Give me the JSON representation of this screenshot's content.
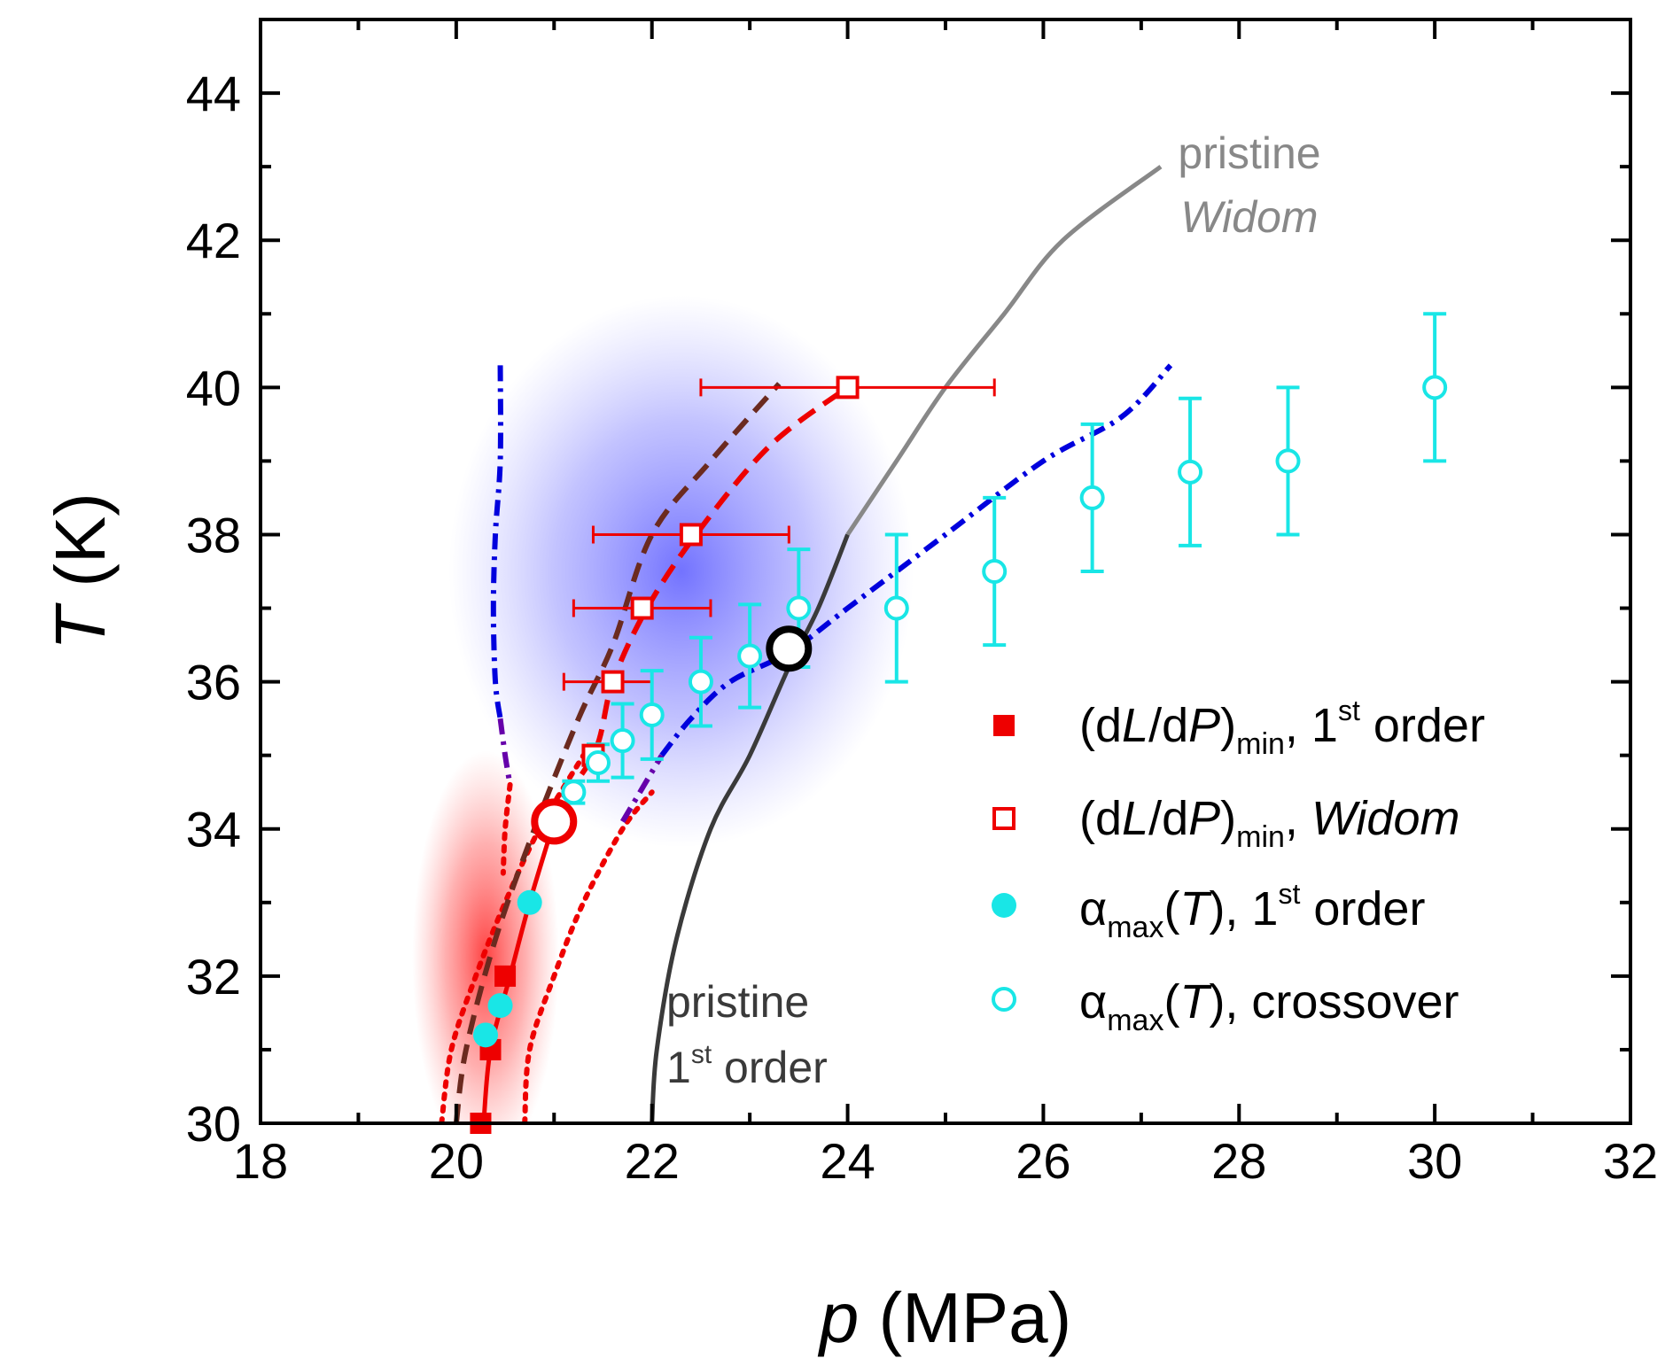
{
  "chart_data": {
    "type": "scatter",
    "title": "",
    "xlabel": {
      "symbol": "p",
      "rest": " (MPa)"
    },
    "ylabel": {
      "symbol": "T",
      "rest": " (K)"
    },
    "xlim": [
      18,
      32
    ],
    "ylim": [
      30,
      45
    ],
    "x_ticks": [
      18,
      20,
      22,
      24,
      26,
      28,
      30,
      32
    ],
    "y_ticks": [
      30,
      32,
      34,
      36,
      38,
      40,
      42,
      44
    ],
    "grid": false,
    "legend_position": "right-center",
    "colors": {
      "red": "#ee0000",
      "cyan": "#19e6e6",
      "blue": "#0000dd",
      "purple": "#6600aa",
      "brown": "#6b2a1f",
      "gray": "#888888",
      "dark_gray": "#3a3a3a"
    },
    "series": [
      {
        "name": "dLdP_first_order",
        "marker": "filled-square",
        "color": "#ee0000",
        "legend": {
          "pre": "(d",
          "i1": "L",
          "mid": "/d",
          "i2": "P",
          "paren": ")",
          "sub": "min",
          "comma": ", 1",
          "sup": "st",
          "post": " order"
        },
        "points": [
          [
            20.25,
            30.0
          ],
          [
            20.35,
            31.0
          ],
          [
            20.5,
            32.0
          ]
        ]
      },
      {
        "name": "dLdP_widom",
        "marker": "open-square",
        "color": "#ee0000",
        "legend": {
          "pre": "(d",
          "i1": "L",
          "mid": "/d",
          "i2": "P",
          "paren": ")",
          "sub": "min",
          "comma": ", ",
          "ital": "Widom"
        },
        "points": [
          {
            "x": 21.4,
            "y": 35.0,
            "xerr": [
              0.1,
              0.1
            ]
          },
          {
            "x": 21.6,
            "y": 36.0,
            "xerr": [
              0.5,
              0.4
            ]
          },
          {
            "x": 21.9,
            "y": 37.0,
            "xerr": [
              0.7,
              0.7
            ]
          },
          {
            "x": 22.4,
            "y": 38.0,
            "xerr": [
              1.0,
              1.0
            ]
          },
          {
            "x": 24.0,
            "y": 40.0,
            "xerr": [
              1.5,
              1.5
            ]
          }
        ]
      },
      {
        "name": "alpha_first_order",
        "marker": "filled-circle",
        "color": "#19e6e6",
        "legend": {
          "pre": "α",
          "sub": "max",
          "open": "(",
          "ital": "T",
          "comma": "), 1",
          "sup": "st",
          "post": " order"
        },
        "points": [
          [
            20.3,
            31.2
          ],
          [
            20.45,
            31.6
          ],
          [
            20.75,
            33.0
          ],
          [
            20.95,
            34.0
          ]
        ]
      },
      {
        "name": "alpha_crossover",
        "marker": "open-circle",
        "color": "#19e6e6",
        "legend": {
          "pre": "α",
          "sub": "max",
          "open": "(",
          "ital": "T",
          "post": "), crossover"
        },
        "points": [
          {
            "x": 21.2,
            "y": 34.5,
            "yerr": 0.15
          },
          {
            "x": 21.45,
            "y": 34.9,
            "yerr": 0.25
          },
          {
            "x": 21.7,
            "y": 35.2,
            "yerr": 0.5
          },
          {
            "x": 22.0,
            "y": 35.55,
            "yerr": 0.6
          },
          {
            "x": 22.5,
            "y": 36.0,
            "yerr": 0.6
          },
          {
            "x": 23.0,
            "y": 36.35,
            "yerr": 0.7
          },
          {
            "x": 23.5,
            "y": 37.0,
            "yerr": 0.8
          },
          {
            "x": 24.5,
            "y": 37.0,
            "yerr": 1.0
          },
          {
            "x": 25.5,
            "y": 37.5,
            "yerr": 1.0
          },
          {
            "x": 26.5,
            "y": 38.5,
            "yerr": 1.0
          },
          {
            "x": 27.5,
            "y": 38.85,
            "yerr": 1.0
          },
          {
            "x": 28.5,
            "y": 39.0,
            "yerr": 1.0
          },
          {
            "x": 30.0,
            "y": 40.0,
            "yerr": 1.0
          }
        ]
      }
    ],
    "lines": [
      {
        "name": "pristine-first-order-line",
        "color": "#3a3a3a",
        "style": "solid",
        "points": [
          [
            22.0,
            30.0
          ],
          [
            22.05,
            31.0
          ],
          [
            22.25,
            32.5
          ],
          [
            22.6,
            34.0
          ],
          [
            23.0,
            35.0
          ],
          [
            23.4,
            36.2
          ],
          [
            23.7,
            37.0
          ],
          [
            24.0,
            38.0
          ]
        ]
      },
      {
        "name": "pristine-widom-line",
        "color": "#888888",
        "style": "solid",
        "points": [
          [
            24.0,
            38.0
          ],
          [
            24.5,
            39.0
          ],
          [
            25.0,
            40.0
          ],
          [
            25.6,
            41.0
          ],
          [
            26.2,
            42.0
          ],
          [
            27.2,
            43.0
          ]
        ]
      },
      {
        "name": "red-solid-line",
        "color": "#ee0000",
        "style": "solid",
        "points": [
          [
            20.28,
            30.0
          ],
          [
            20.35,
            31.0
          ],
          [
            20.55,
            32.0
          ],
          [
            20.75,
            33.0
          ],
          [
            21.0,
            34.1
          ]
        ]
      },
      {
        "name": "red-dotted-left",
        "color": "#ee0000",
        "style": "dotted",
        "points": [
          [
            19.85,
            30.0
          ],
          [
            19.95,
            31.0
          ],
          [
            20.2,
            32.0
          ],
          [
            20.5,
            33.0
          ],
          [
            20.85,
            34.0
          ],
          [
            21.3,
            35.0
          ]
        ]
      },
      {
        "name": "red-dotted-right",
        "color": "#ee0000",
        "style": "dotted",
        "points": [
          [
            20.7,
            30.0
          ],
          [
            20.75,
            31.0
          ],
          [
            21.0,
            32.0
          ],
          [
            21.3,
            33.0
          ],
          [
            21.7,
            34.0
          ],
          [
            22.0,
            34.5
          ]
        ]
      },
      {
        "name": "brown-dashed-line",
        "color": "#6b2a1f",
        "style": "dashed",
        "points": [
          [
            20.0,
            30.0
          ],
          [
            20.1,
            31.0
          ],
          [
            20.4,
            32.5
          ],
          [
            20.8,
            34.0
          ],
          [
            21.25,
            35.5
          ],
          [
            21.6,
            36.5
          ],
          [
            22.0,
            38.0
          ],
          [
            22.6,
            39.0
          ],
          [
            23.3,
            40.05
          ]
        ]
      },
      {
        "name": "red-dashed-line",
        "color": "#ee0000",
        "style": "dashed",
        "points": [
          [
            20.9,
            34.1
          ],
          [
            21.4,
            35.0
          ],
          [
            21.6,
            36.0
          ],
          [
            21.95,
            37.0
          ],
          [
            22.45,
            38.0
          ],
          [
            23.2,
            39.2
          ],
          [
            24.0,
            40.0
          ]
        ]
      },
      {
        "name": "blue-dashdot-left",
        "color": "#0000dd",
        "style": "dashdot",
        "points": [
          [
            20.45,
            40.3
          ],
          [
            20.45,
            39.0
          ],
          [
            20.4,
            38.0
          ],
          [
            20.38,
            37.0
          ],
          [
            20.4,
            36.0
          ],
          [
            20.45,
            35.5
          ]
        ]
      },
      {
        "name": "purple-dashdot-left",
        "color": "#6600aa",
        "style": "dashdot",
        "points": [
          [
            20.45,
            35.5
          ],
          [
            20.5,
            35.0
          ],
          [
            20.55,
            34.6
          ]
        ]
      },
      {
        "name": "red-dotted-left-top",
        "color": "#ee0000",
        "style": "dotted",
        "points": [
          [
            20.55,
            34.6
          ],
          [
            20.5,
            34.0
          ],
          [
            20.48,
            33.4
          ]
        ]
      },
      {
        "name": "blue-dashdot-right",
        "color": "#0000dd",
        "style": "dashdot",
        "points": [
          [
            22.1,
            35.0
          ],
          [
            22.4,
            35.5
          ],
          [
            22.8,
            36.0
          ],
          [
            23.4,
            36.4
          ],
          [
            24.0,
            37.0
          ],
          [
            25.0,
            38.0
          ],
          [
            26.0,
            39.0
          ],
          [
            26.8,
            39.6
          ],
          [
            27.3,
            40.3
          ]
        ]
      },
      {
        "name": "purple-dashdot-right",
        "color": "#6600aa",
        "style": "dashdot",
        "points": [
          [
            21.7,
            34.1
          ],
          [
            22.1,
            35.0
          ]
        ]
      }
    ],
    "shaded_regions": [
      {
        "name": "blue-supercritical-region",
        "color": "#6a6aff",
        "x": [
          20.4,
          24.2
        ],
        "y": [
          34.5,
          40.5
        ]
      },
      {
        "name": "red-first-order-region",
        "color": "#ff3030",
        "x": [
          19.7,
          20.9
        ],
        "y": [
          30.0,
          34.5
        ]
      }
    ],
    "special_points": [
      {
        "name": "red-critical-point",
        "x": 21.0,
        "y": 34.1,
        "stroke": "#ee0000"
      },
      {
        "name": "black-critical-point",
        "x": 23.4,
        "y": 36.45,
        "stroke": "#000000"
      }
    ],
    "annotations": [
      {
        "name": "pristine-widom-label",
        "line1": "pristine",
        "line2": "Widom",
        "color": "#888888",
        "x": 26.4,
        "y": 43.0
      },
      {
        "name": "pristine-first-order-label",
        "line1": "pristine",
        "line2_pre": "1",
        "line2_sup": "st",
        "line2_post": " order",
        "color": "#3a3a3a",
        "x": 22.2,
        "y": 31.7
      }
    ]
  }
}
